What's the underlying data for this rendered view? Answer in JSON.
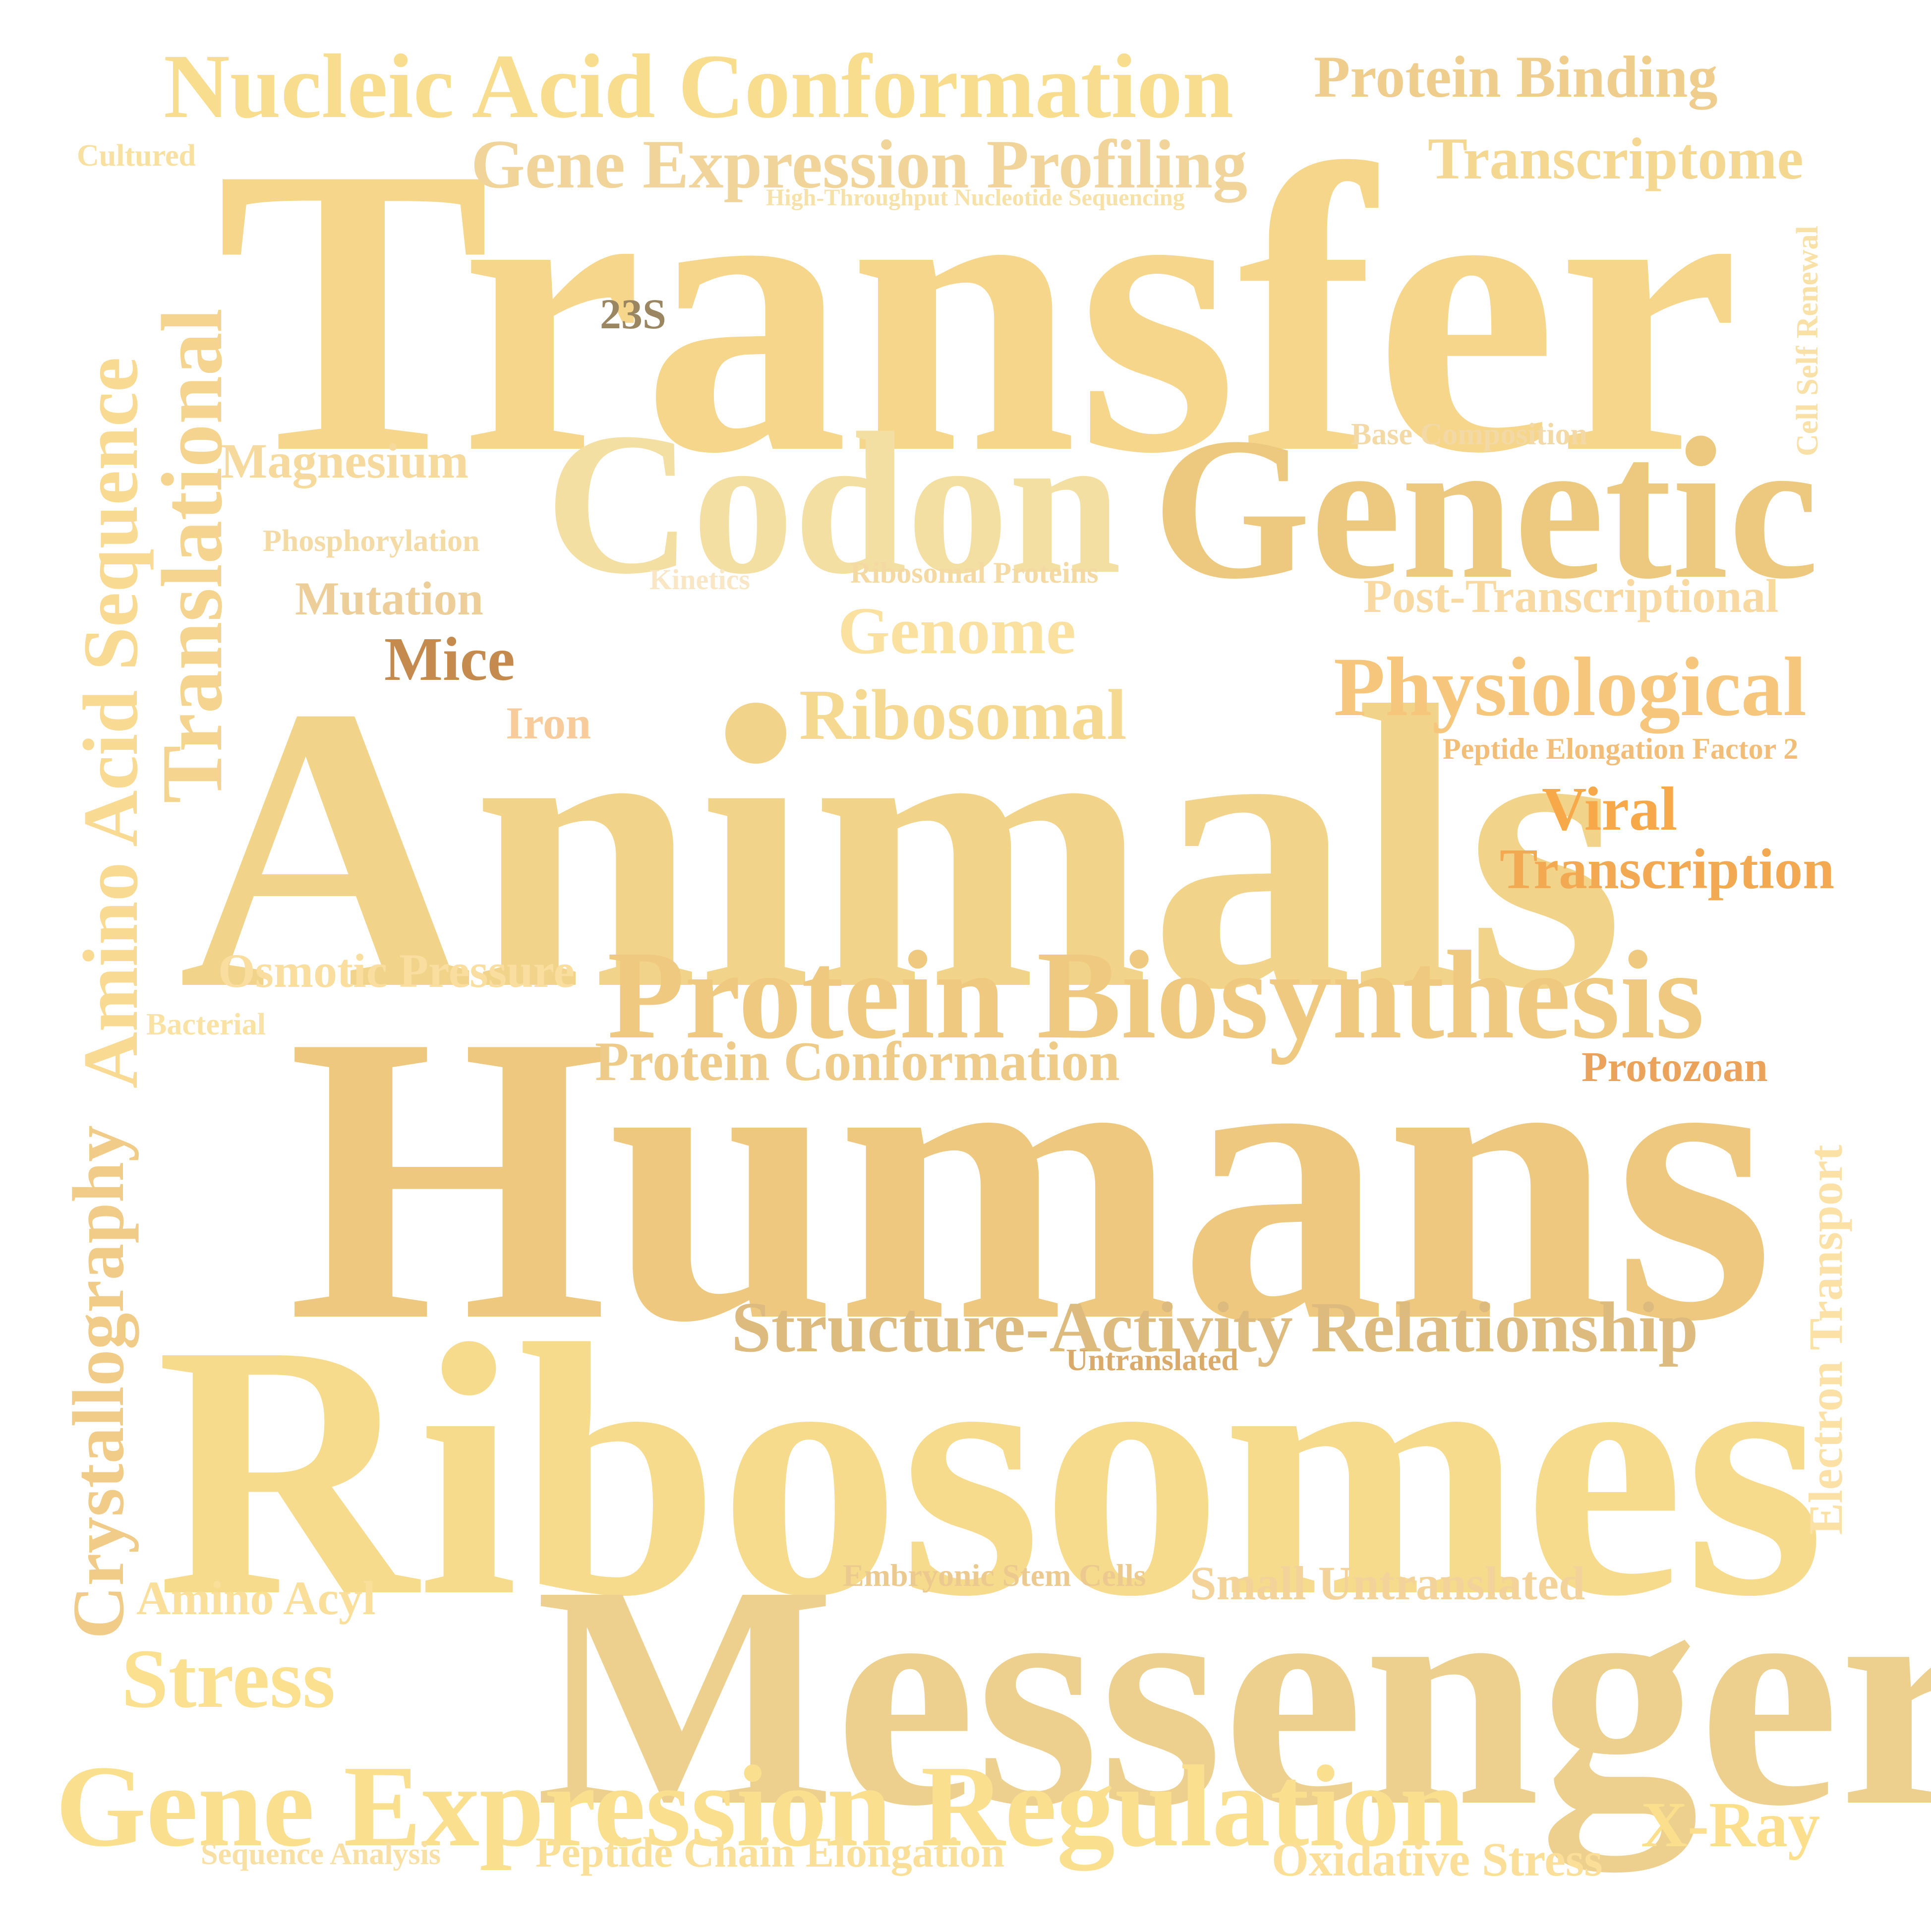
{
  "words": [
    {
      "id": "transfer",
      "text": "Transfer",
      "color": "#F5D68A"
    },
    {
      "id": "animals",
      "text": "Animals",
      "color": "#F2D38A"
    },
    {
      "id": "humans",
      "text": "Humans",
      "color": "#EDC87E"
    },
    {
      "id": "ribosomes",
      "text": "Ribosomes",
      "color": "#F7DB8C"
    },
    {
      "id": "messenger",
      "text": "Messenger",
      "color": "#EDD08E"
    },
    {
      "id": "codon",
      "text": "Codon",
      "color": "#F4DFA3"
    },
    {
      "id": "genetic",
      "text": "Genetic",
      "color": "#EDC97F"
    },
    {
      "id": "protein-biosynthesis",
      "text": "Protein Biosynthesis",
      "color": "#EEC97F"
    },
    {
      "id": "gene-expression-regulation",
      "text": "Gene Expression Regulation",
      "color": "#FADF8E"
    },
    {
      "id": "nucleic-acid-conformation",
      "text": "Nucleic Acid Conformation",
      "color": "#F8DD8F"
    },
    {
      "id": "gene-expression-profiling",
      "text": "Gene Expression Profiling",
      "color": "#F0D49A"
    },
    {
      "id": "protein-binding",
      "text": "Protein Binding",
      "color": "#EFCD8C"
    },
    {
      "id": "transcriptome",
      "text": "Transcriptome",
      "color": "#F4D892"
    },
    {
      "id": "high-throughput",
      "text": "High-Throughput Nucleotide Sequencing",
      "color": "#F6E2A9"
    },
    {
      "id": "cultured",
      "text": "Cultured",
      "color": "#F8E0A0"
    },
    {
      "id": "23s",
      "text": "23S",
      "color": "#9A8762"
    },
    {
      "id": "magnesium",
      "text": "Magnesium",
      "color": "#F6D99C"
    },
    {
      "id": "phosphorylation",
      "text": "Phosphorylation",
      "color": "#F4DAA4"
    },
    {
      "id": "kinetics",
      "text": "Kinetics",
      "color": "#F8E6C5"
    },
    {
      "id": "ribosomal-proteins",
      "text": "Ribosomal Proteins",
      "color": "#F4D9A2"
    },
    {
      "id": "base-composition",
      "text": "Base Composition",
      "color": "#F2D9A6"
    },
    {
      "id": "post-transcriptional",
      "text": "Post-Transcriptional",
      "color": "#F8D9A1"
    },
    {
      "id": "mutation",
      "text": "Mutation",
      "color": "#EDCE99"
    },
    {
      "id": "mice",
      "text": "Mice",
      "color": "#C48A4E"
    },
    {
      "id": "genome",
      "text": "Genome",
      "color": "#FBE19F"
    },
    {
      "id": "physiological",
      "text": "Physiological",
      "color": "#F6C67C"
    },
    {
      "id": "iron",
      "text": "Iron",
      "color": "#F7CB9A"
    },
    {
      "id": "ribosomal",
      "text": "Ribosomal",
      "color": "#F6D990"
    },
    {
      "id": "peptide-elongation-factor-2",
      "text": "Peptide Elongation Factor 2",
      "color": "#F2BD76"
    },
    {
      "id": "viral",
      "text": "Viral",
      "color": "#F7A94A"
    },
    {
      "id": "transcription",
      "text": "Transcription",
      "color": "#F3A951"
    },
    {
      "id": "osmotic-pressure",
      "text": "Osmotic Pressure",
      "color": "#F9DE9F"
    },
    {
      "id": "bacterial",
      "text": "Bacterial",
      "color": "#FAE2A4"
    },
    {
      "id": "protein-conformation",
      "text": "Protein Conformation",
      "color": "#EECB88"
    },
    {
      "id": "protozoan",
      "text": "Protozoan",
      "color": "#EBA25A"
    },
    {
      "id": "structure-activity-relationship",
      "text": "Structure-Activity Relationship",
      "color": "#DDBA7E"
    },
    {
      "id": "untranslated",
      "text": "Untranslated",
      "color": "#D9AA6A"
    },
    {
      "id": "embryonic-stem-cells",
      "text": "Embryonic Stem Cells",
      "color": "#EBC98F"
    },
    {
      "id": "small-untranslated",
      "text": "Small Untranslated",
      "color": "#F3D39A"
    },
    {
      "id": "amino-acyl",
      "text": "Amino Acyl",
      "color": "#FADF9A"
    },
    {
      "id": "stress",
      "text": "Stress",
      "color": "#FAE08F"
    },
    {
      "id": "x-ray",
      "text": "X-Ray",
      "color": "#FBDF8C"
    },
    {
      "id": "sequence-analysis",
      "text": "Sequence Analysis",
      "color": "#F8E0A4"
    },
    {
      "id": "peptide-chain-elongation",
      "text": "Peptide Chain Elongation",
      "color": "#FADF98"
    },
    {
      "id": "oxidative-stress",
      "text": "Oxidative Stress",
      "color": "#FBDF98"
    },
    {
      "id": "translational",
      "text": "Translational",
      "color": "#F5D48F"
    },
    {
      "id": "amino-acid-sequence",
      "text": "Amino Acid Sequence",
      "color": "#F9DA92"
    },
    {
      "id": "crystallography",
      "text": "Crystallography",
      "color": "#F1CC88"
    },
    {
      "id": "cell-self-renewal",
      "text": "Cell Self Renewal",
      "color": "#F8E0A6"
    },
    {
      "id": "electron-transport",
      "text": "Electron Transport",
      "color": "#FBE1A6"
    }
  ]
}
